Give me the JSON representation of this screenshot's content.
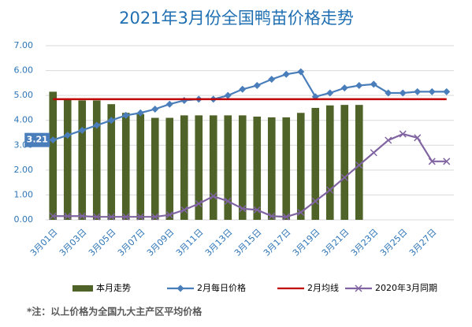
{
  "chart_data": {
    "type": "bar",
    "title": "2021年3月份全国鸭苗价格走势",
    "note": "*注：以上价格为全国九大主产区平均价格",
    "categories": [
      "3月01日",
      null,
      "3月03日",
      null,
      "3月05日",
      null,
      "3月07日",
      null,
      "3月09日",
      null,
      "3月11日",
      null,
      "3月13日",
      null,
      "3月15日",
      null,
      "3月17日",
      null,
      "3月19日",
      null,
      "3月21日",
      null,
      "3月23日",
      null,
      "3月25日",
      null,
      "3月27日",
      null
    ],
    "ylim": [
      0,
      7
    ],
    "yticks": [
      {
        "value": 0,
        "label": "0.00"
      },
      {
        "value": 1,
        "label": "1.00"
      },
      {
        "value": 2,
        "label": "2.00"
      },
      {
        "value": 3,
        "label": "3.00"
      },
      {
        "value": 4,
        "label": "4.00"
      },
      {
        "value": 5,
        "label": "5.00"
      },
      {
        "value": 6,
        "label": "6.00"
      },
      {
        "value": 7,
        "label": "7.00"
      }
    ],
    "grid": true,
    "legend": "bottom",
    "series": [
      {
        "name": "本月走势",
        "type": "bar",
        "color": "#4f6228",
        "marker": "none",
        "values": [
          5.15,
          4.85,
          4.8,
          4.8,
          4.65,
          4.3,
          4.25,
          4.1,
          4.1,
          4.2,
          4.2,
          4.2,
          4.2,
          4.2,
          4.15,
          4.12,
          4.12,
          4.3,
          4.5,
          4.6,
          4.62,
          4.62,
          null,
          null,
          null,
          null,
          null,
          null
        ]
      },
      {
        "name": "2月每日价格",
        "type": "line",
        "color": "#4a7ebb",
        "marker": "diamond",
        "values": [
          3.21,
          3.4,
          3.6,
          3.8,
          4.0,
          4.2,
          4.3,
          4.45,
          4.65,
          4.8,
          4.85,
          4.85,
          5.0,
          5.25,
          5.4,
          5.65,
          5.85,
          5.95,
          4.95,
          5.1,
          5.3,
          5.4,
          5.45,
          5.1,
          5.1,
          5.15,
          5.15,
          5.15
        ],
        "value_labels": [
          "3.21",
          null,
          null,
          null,
          null,
          null,
          null,
          null,
          null,
          null,
          null,
          null,
          null,
          null,
          null,
          null,
          null,
          null,
          null,
          null,
          null,
          null,
          null,
          null,
          null,
          null,
          null,
          null
        ]
      },
      {
        "name": "2月均线",
        "type": "line",
        "color": "#c00000",
        "marker": "none",
        "values": [
          4.85,
          4.85,
          4.85,
          4.85,
          4.85,
          4.85,
          4.85,
          4.85,
          4.85,
          4.85,
          4.85,
          4.85,
          4.85,
          4.85,
          4.85,
          4.85,
          4.85,
          4.85,
          4.85,
          4.85,
          4.85,
          4.85,
          4.85,
          4.85,
          4.85,
          4.85,
          4.85,
          4.85
        ]
      },
      {
        "name": "2020年3月同期",
        "type": "line",
        "color": "#8064a2",
        "marker": "x",
        "values": [
          0.15,
          0.15,
          0.15,
          0.12,
          0.12,
          0.12,
          0.12,
          0.12,
          0.2,
          0.4,
          0.65,
          0.95,
          0.75,
          0.45,
          0.4,
          0.15,
          0.12,
          0.3,
          0.75,
          1.2,
          1.7,
          2.2,
          2.7,
          3.2,
          3.45,
          3.3,
          2.35,
          2.35
        ]
      }
    ]
  }
}
